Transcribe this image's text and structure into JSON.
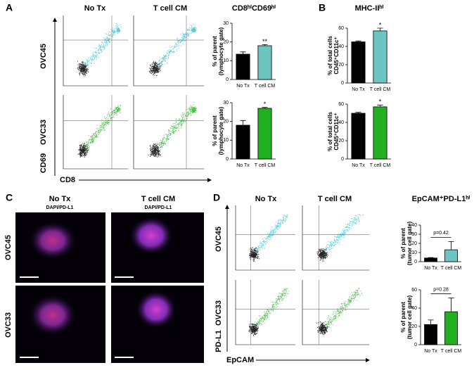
{
  "panel_labels": [
    "A",
    "B",
    "C",
    "D"
  ],
  "panel_a": {
    "columns": [
      "No Tx",
      "T cell CM"
    ],
    "rows": [
      "OVC45",
      "OVC33"
    ],
    "y_axis": "CD69",
    "x_axis": "CD8"
  },
  "panel_c": {
    "columns": [
      "No Tx",
      "T cell CM"
    ],
    "stains": [
      "DAPI/PD-L1",
      "DAPI/PD-L1"
    ],
    "rows": [
      "OVC45",
      "OVC33"
    ]
  },
  "panel_d": {
    "columns": [
      "No Tx",
      "T cell CM"
    ],
    "rows": [
      "OVC45",
      "OVC33"
    ],
    "y_axis": "PD-L1",
    "x_axis": "EpCAM"
  },
  "chart_data": [
    {
      "type": "bar",
      "title": "CD8ʰⁱCD69ʰⁱ",
      "y_label": [
        "% of parent",
        "(lymphocyte gate)"
      ],
      "categories": [
        "No Tx",
        "T cell CM"
      ],
      "values": [
        13.5,
        18
      ],
      "errors": [
        1.2,
        0.6
      ],
      "colors": [
        "#000000",
        "#6cc5c0"
      ],
      "ylim": [
        0,
        30
      ],
      "yticks": [
        0,
        10,
        20,
        30
      ],
      "significance": "**"
    },
    {
      "type": "bar",
      "y_label": [
        "% of parent",
        "(lymphocyte gate)"
      ],
      "categories": [
        "No Tx",
        "T cell CM"
      ],
      "values": [
        18,
        27
      ],
      "errors": [
        2.5,
        0.5
      ],
      "colors": [
        "#000000",
        "#22b022"
      ],
      "ylim": [
        0,
        30
      ],
      "yticks": [
        0,
        10,
        20,
        30
      ],
      "significance": "*"
    },
    {
      "type": "bar",
      "title": "MHC-IIʰⁱ",
      "y_label": [
        "% of total cells",
        "CD45⁺CD11c⁺"
      ],
      "categories": [
        "No Tx",
        "T cell CM"
      ],
      "values": [
        45,
        57
      ],
      "errors": [
        1,
        3
      ],
      "colors": [
        "#000000",
        "#6cc5c0"
      ],
      "ylim": [
        0,
        60
      ],
      "yticks": [
        0,
        20,
        40,
        60
      ],
      "significance": "*"
    },
    {
      "type": "bar",
      "y_label": [
        "% of total cells",
        "CD45⁺CD11c⁺"
      ],
      "categories": [
        "No Tx",
        "T cell CM"
      ],
      "values": [
        50,
        57
      ],
      "errors": [
        1,
        2
      ],
      "colors": [
        "#000000",
        "#22b022"
      ],
      "ylim": [
        0,
        60
      ],
      "yticks": [
        0,
        20,
        40,
        60
      ],
      "significance": "*"
    },
    {
      "type": "bar",
      "title": "EpCAM⁺PD-L1ʰⁱ",
      "y_label": [
        "% of parent",
        "(tumor cell gate)"
      ],
      "categories": [
        "No Tx",
        "T cell CM"
      ],
      "values": [
        4,
        13
      ],
      "errors": [
        0.5,
        9
      ],
      "colors": [
        "#000000",
        "#6cc5c0"
      ],
      "ylim": [
        0,
        40
      ],
      "yticks": [
        0,
        10,
        20,
        30,
        40
      ],
      "comparison": "p=0.42"
    },
    {
      "type": "bar",
      "y_label": [
        "% of parent",
        "(tumor cell gate)"
      ],
      "categories": [
        "No Tx",
        "T cell CM"
      ],
      "values": [
        22,
        36
      ],
      "errors": [
        5,
        15
      ],
      "colors": [
        "#000000",
        "#22b022"
      ],
      "ylim": [
        0,
        60
      ],
      "yticks": [
        0,
        20,
        40,
        60
      ],
      "comparison": "p=0.28"
    }
  ]
}
